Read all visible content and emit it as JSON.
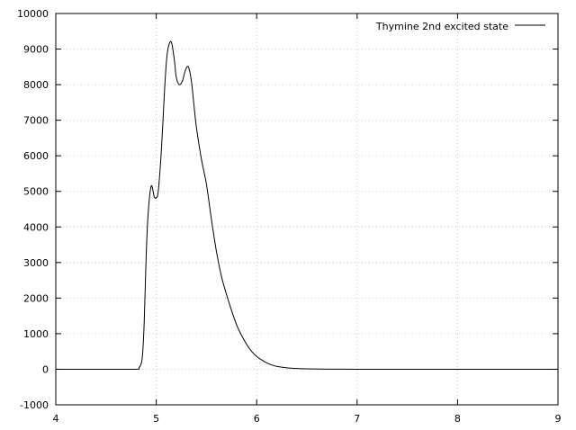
{
  "chart_data": {
    "type": "line",
    "title": "",
    "xlabel": "",
    "ylabel": "",
    "xlim": [
      4,
      9
    ],
    "ylim": [
      -1000,
      10000
    ],
    "xticks": [
      4,
      5,
      6,
      7,
      8,
      9
    ],
    "yticks": [
      -1000,
      0,
      1000,
      2000,
      3000,
      4000,
      5000,
      6000,
      7000,
      8000,
      9000,
      10000
    ],
    "grid": true,
    "legend_position": "top-right",
    "series": [
      {
        "name": "Thymine 2nd excited state",
        "color": "#000000",
        "x": [
          4.0,
          4.5,
          4.8,
          4.83,
          4.86,
          4.88,
          4.9,
          4.92,
          4.95,
          4.98,
          5.0,
          5.02,
          5.05,
          5.08,
          5.1,
          5.12,
          5.15,
          5.18,
          5.2,
          5.23,
          5.26,
          5.29,
          5.32,
          5.35,
          5.38,
          5.4,
          5.45,
          5.5,
          5.55,
          5.6,
          5.65,
          5.7,
          5.75,
          5.8,
          5.85,
          5.9,
          5.95,
          6.0,
          6.05,
          6.1,
          6.15,
          6.2,
          6.3,
          6.4,
          6.5,
          6.7,
          7.0,
          8.0,
          9.0
        ],
        "y": [
          0,
          0,
          0,
          50,
          300,
          1300,
          3200,
          4400,
          5150,
          4850,
          4820,
          5000,
          6100,
          7700,
          8600,
          9050,
          9200,
          8700,
          8200,
          8000,
          8100,
          8400,
          8500,
          8100,
          7300,
          6800,
          5900,
          5200,
          4200,
          3300,
          2600,
          2100,
          1650,
          1250,
          950,
          700,
          500,
          360,
          260,
          180,
          120,
          80,
          40,
          20,
          10,
          3,
          0,
          0,
          0
        ]
      }
    ]
  }
}
